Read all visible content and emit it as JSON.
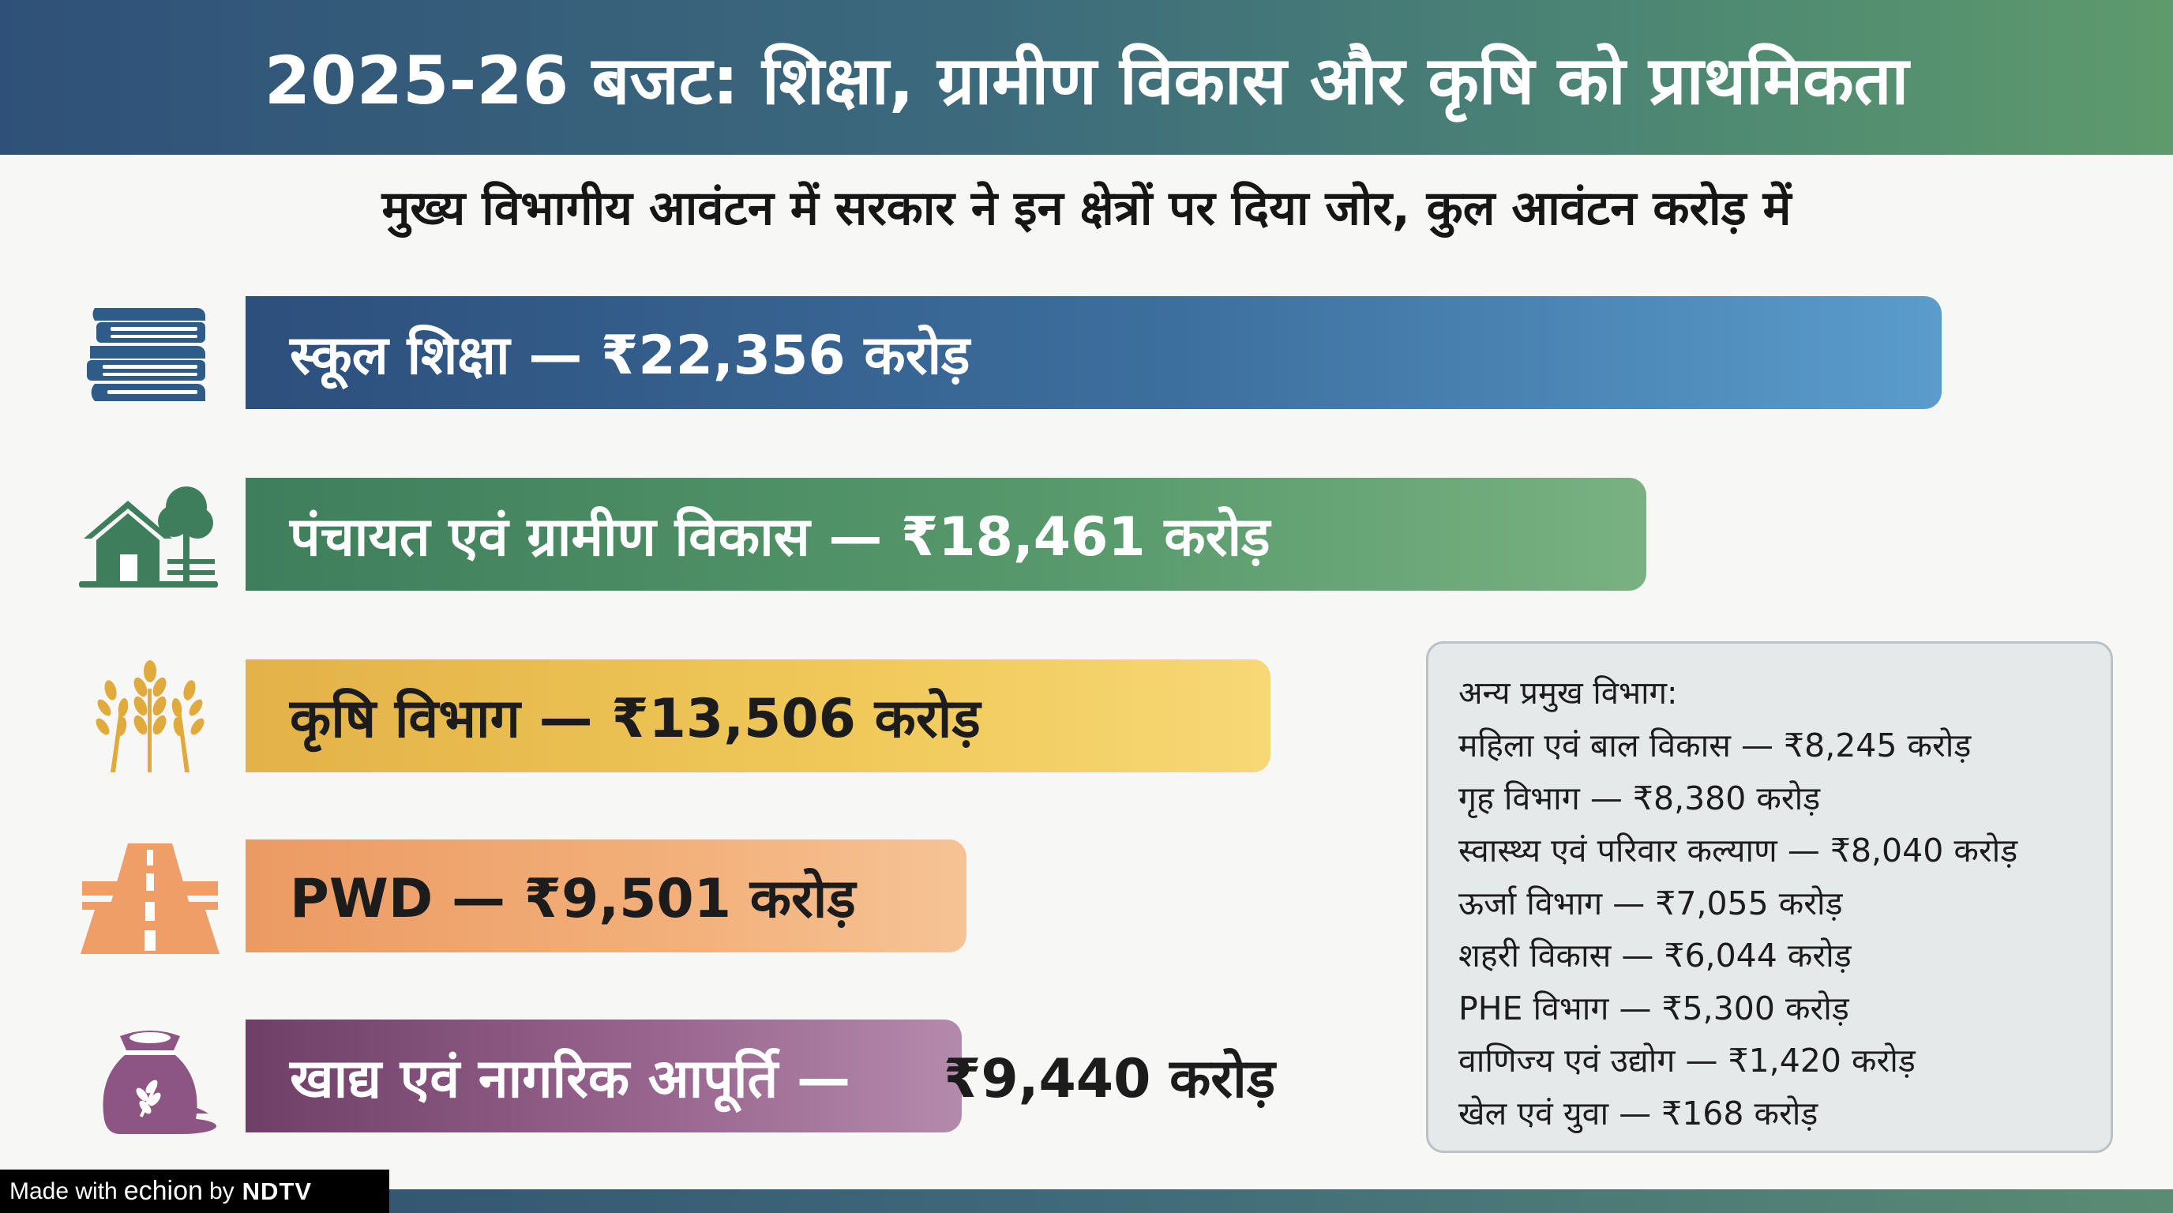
{
  "header": {
    "title": "2025-26 बजट: शिक्षा, ग्रामीण विकास और कृषि को प्राथमिकता"
  },
  "subtitle": "मुख्य विभागीय आवंटन में सरकार ने इन क्षेत्रों पर दिया जोर, कुल आवंटन करोड़ में",
  "icons": [
    "books-icon",
    "rural-house-tree-icon",
    "wheat-icon",
    "highway-road-icon",
    "grain-sack-icon"
  ],
  "chart_data": {
    "type": "bar",
    "orientation": "horizontal",
    "categories": [
      "स्कूल शिक्षा",
      "पंचायत एवं ग्रामीण विकास",
      "कृषि विभाग",
      "PWD",
      "खाद्य एवं नागरिक आपूर्ति"
    ],
    "values": [
      22356,
      18461,
      13506,
      9501,
      9440
    ],
    "labels": [
      "स्कूल शिक्षा — ₹22,356 करोड़",
      "पंचायत एवं ग्रामीण विकास — ₹18,461 करोड़",
      "कृषि विभाग — ₹13,506 करोड़",
      "PWD — ₹9,501 करोड़",
      "खाद्य एवं नागरिक आपूर्ति —"
    ],
    "last_value_label": "₹9,440 करोड़",
    "colors": [
      "#3d6f9e",
      "#589a6c",
      "#f0c95a",
      "#f3b07a",
      "#9a6790"
    ],
    "xlim": [
      0,
      22356
    ],
    "grid": false
  },
  "others": {
    "title": "अन्य प्रमुख विभाग:",
    "items": [
      "महिला एवं बाल विकास — ₹8,245 करोड़",
      "गृह विभाग — ₹8,380 करोड़",
      "स्वास्थ्य एवं परिवार कल्याण — ₹8,040 करोड़",
      "ऊर्जा विभाग — ₹7,055 करोड़",
      "शहरी विकास — ₹6,044 करोड़",
      "PHE विभाग — ₹5,300 करोड़",
      "वाणिज्य एवं उद्योग — ₹1,420 करोड़",
      "खेल एवं युवा — ₹168 करोड़"
    ]
  },
  "watermark": {
    "text": "Made with",
    "logo": "echion",
    "by": "by",
    "brand": "NDTV"
  }
}
